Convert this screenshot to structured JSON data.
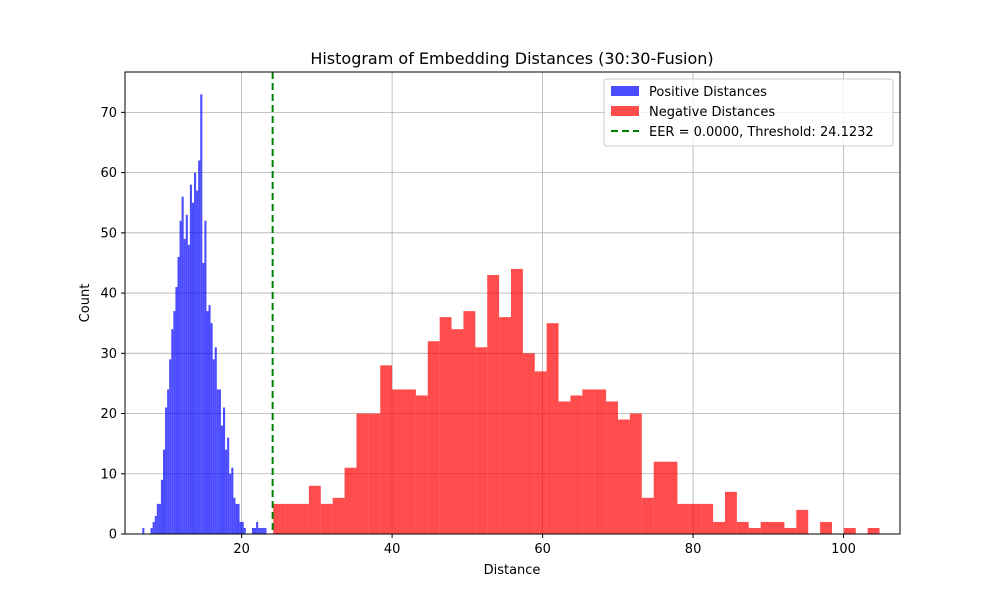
{
  "chart_data": {
    "type": "histogram",
    "title": "Histogram of Embedding Distances (30:30-Fusion)",
    "xlabel": "Distance",
    "ylabel": "Count",
    "xlim": [
      4.5,
      107.5
    ],
    "ylim": [
      0,
      76.7
    ],
    "xticks": [
      20,
      40,
      60,
      80,
      100
    ],
    "yticks": [
      0,
      10,
      20,
      30,
      40,
      50,
      60,
      70
    ],
    "grid": true,
    "legend_position": "top-right",
    "series": [
      {
        "name": "Positive Distances",
        "color": "#0000ff",
        "opacity": 0.7,
        "bin_start": 6.8,
        "bin_width": 0.275,
        "counts": [
          1,
          0,
          0,
          0,
          1,
          2,
          3,
          5,
          5,
          9,
          14,
          21,
          24,
          29,
          34,
          37,
          41,
          46,
          52,
          56,
          49,
          53,
          48,
          58,
          55,
          60,
          57,
          62,
          73,
          45,
          52,
          37,
          38,
          35,
          29,
          31,
          24,
          24,
          18,
          21,
          14,
          16,
          10,
          11,
          6,
          5,
          5,
          2,
          2,
          1,
          0,
          0,
          0,
          1,
          1,
          2,
          1,
          1,
          1,
          1
        ]
      },
      {
        "name": "Negative Distances",
        "color": "#ff0000",
        "opacity": 0.7,
        "bin_start": 24.2,
        "bin_width": 1.58,
        "counts": [
          5,
          5,
          5,
          8,
          5,
          6,
          11,
          20,
          20,
          28,
          24,
          24,
          23,
          32,
          36,
          34,
          37,
          31,
          43,
          36,
          44,
          30,
          27,
          35,
          22,
          23,
          24,
          24,
          22,
          19,
          20,
          6,
          12,
          12,
          5,
          5,
          5,
          2,
          7,
          2,
          1,
          2,
          2,
          1,
          4,
          0,
          2,
          0,
          1,
          0,
          1
        ]
      }
    ],
    "reference_lines": [
      {
        "orientation": "vertical",
        "x": 24.1232,
        "color": "#008000",
        "style": "dashed",
        "label": "EER = 0.0000, Threshold: 24.1232"
      }
    ]
  }
}
